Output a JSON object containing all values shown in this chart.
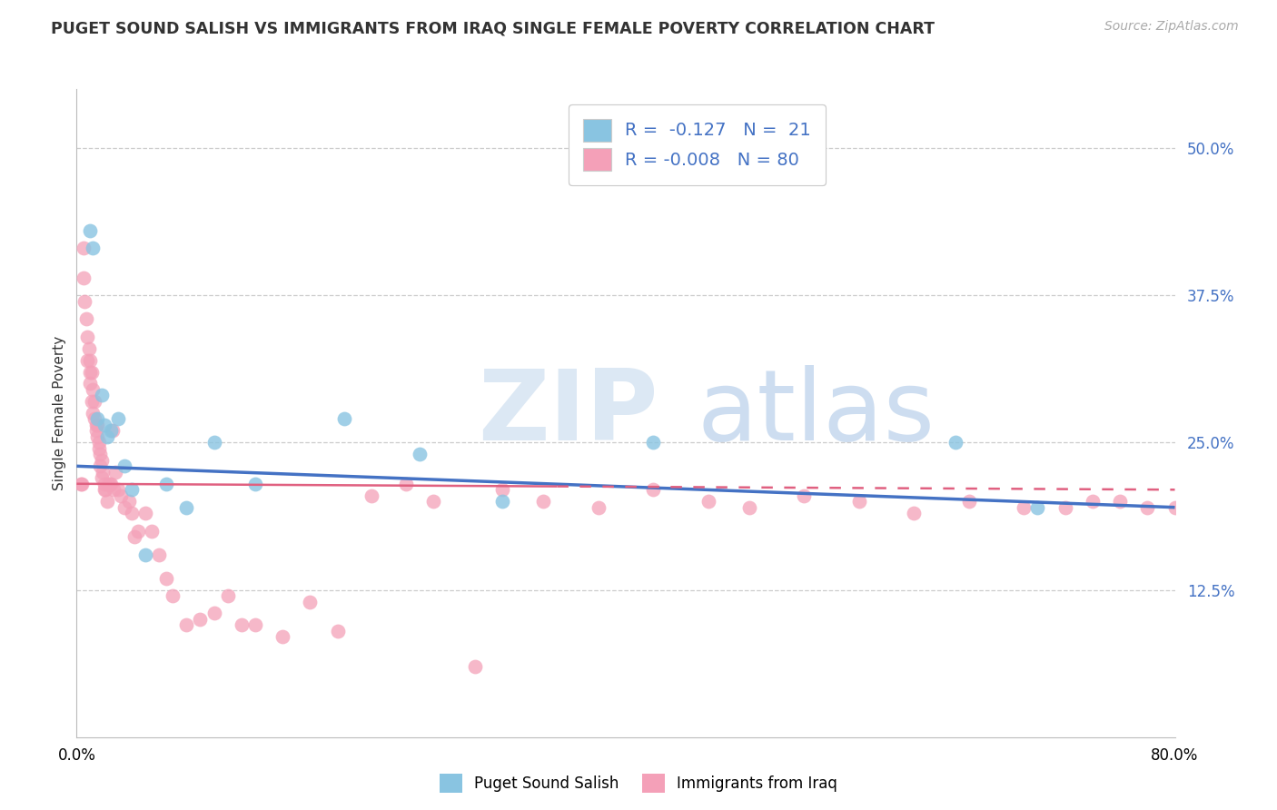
{
  "title": "PUGET SOUND SALISH VS IMMIGRANTS FROM IRAQ SINGLE FEMALE POVERTY CORRELATION CHART",
  "source": "Source: ZipAtlas.com",
  "ylabel": "Single Female Poverty",
  "legend_label1": "Puget Sound Salish",
  "legend_label2": "Immigrants from Iraq",
  "r1": -0.127,
  "n1": 21,
  "r2": -0.008,
  "n2": 80,
  "color1": "#89c4e1",
  "color2": "#f4a0b8",
  "line1_color": "#4472c4",
  "line2_color": "#e06080",
  "xlim": [
    0.0,
    0.8
  ],
  "ylim": [
    0.0,
    0.55
  ],
  "right_ytick_vals": [
    0.125,
    0.25,
    0.375,
    0.5
  ],
  "right_ytick_labels": [
    "12.5%",
    "25.0%",
    "37.5%",
    "50.0%"
  ],
  "blue_line_start": 0.23,
  "blue_line_end": 0.195,
  "pink_line_start": 0.215,
  "pink_line_end": 0.21,
  "blue_x": [
    0.01,
    0.012,
    0.015,
    0.018,
    0.02,
    0.022,
    0.025,
    0.03,
    0.035,
    0.04,
    0.05,
    0.065,
    0.08,
    0.1,
    0.13,
    0.195,
    0.25,
    0.31,
    0.42,
    0.64,
    0.7
  ],
  "blue_y": [
    0.43,
    0.415,
    0.27,
    0.29,
    0.265,
    0.255,
    0.26,
    0.27,
    0.23,
    0.21,
    0.155,
    0.215,
    0.195,
    0.25,
    0.215,
    0.27,
    0.24,
    0.2,
    0.25,
    0.25,
    0.195
  ],
  "pink_x": [
    0.003,
    0.004,
    0.005,
    0.005,
    0.006,
    0.007,
    0.008,
    0.008,
    0.009,
    0.01,
    0.01,
    0.01,
    0.011,
    0.011,
    0.012,
    0.012,
    0.013,
    0.013,
    0.014,
    0.014,
    0.015,
    0.015,
    0.016,
    0.016,
    0.017,
    0.017,
    0.018,
    0.018,
    0.019,
    0.02,
    0.02,
    0.021,
    0.022,
    0.023,
    0.024,
    0.025,
    0.026,
    0.027,
    0.028,
    0.03,
    0.032,
    0.035,
    0.038,
    0.04,
    0.042,
    0.045,
    0.05,
    0.055,
    0.06,
    0.065,
    0.07,
    0.08,
    0.09,
    0.1,
    0.11,
    0.12,
    0.13,
    0.15,
    0.17,
    0.19,
    0.215,
    0.24,
    0.26,
    0.29,
    0.31,
    0.34,
    0.38,
    0.42,
    0.46,
    0.49,
    0.53,
    0.57,
    0.61,
    0.65,
    0.69,
    0.72,
    0.74,
    0.76,
    0.78,
    0.8
  ],
  "pink_y": [
    0.215,
    0.215,
    0.415,
    0.39,
    0.37,
    0.355,
    0.34,
    0.32,
    0.33,
    0.31,
    0.3,
    0.32,
    0.285,
    0.31,
    0.275,
    0.295,
    0.27,
    0.285,
    0.26,
    0.265,
    0.255,
    0.265,
    0.25,
    0.245,
    0.24,
    0.23,
    0.235,
    0.22,
    0.225,
    0.21,
    0.215,
    0.21,
    0.2,
    0.215,
    0.215,
    0.215,
    0.26,
    0.21,
    0.225,
    0.21,
    0.205,
    0.195,
    0.2,
    0.19,
    0.17,
    0.175,
    0.19,
    0.175,
    0.155,
    0.135,
    0.12,
    0.095,
    0.1,
    0.105,
    0.12,
    0.095,
    0.095,
    0.085,
    0.115,
    0.09,
    0.205,
    0.215,
    0.2,
    0.06,
    0.21,
    0.2,
    0.195,
    0.21,
    0.2,
    0.195,
    0.205,
    0.2,
    0.19,
    0.2,
    0.195,
    0.195,
    0.2,
    0.2,
    0.195,
    0.195
  ]
}
